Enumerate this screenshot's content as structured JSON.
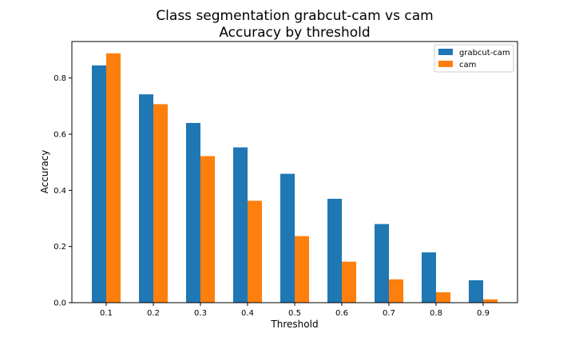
{
  "chart_data": {
    "type": "bar",
    "title_lines": [
      "Class segmentation grabcut-cam vs cam",
      "Accuracy by threshold"
    ],
    "xlabel": "Threshold",
    "ylabel": "Accuracy",
    "categories": [
      "0.1",
      "0.2",
      "0.3",
      "0.4",
      "0.5",
      "0.6",
      "0.7",
      "0.8",
      "0.9"
    ],
    "series": [
      {
        "name": "grabcut-cam",
        "color": "#1f77b4",
        "values": [
          0.845,
          0.742,
          0.64,
          0.553,
          0.459,
          0.37,
          0.28,
          0.179,
          0.08
        ]
      },
      {
        "name": "cam",
        "color": "#ff7f0e",
        "values": [
          0.888,
          0.707,
          0.522,
          0.363,
          0.237,
          0.146,
          0.083,
          0.037,
          0.012
        ]
      }
    ],
    "ylim": [
      0,
      0.93
    ],
    "yticks": [
      0.0,
      0.2,
      0.4,
      0.6,
      0.8
    ],
    "ytick_labels": [
      "0.0",
      "0.2",
      "0.4",
      "0.6",
      "0.8"
    ],
    "grid": false,
    "legend_position": "top-right"
  }
}
